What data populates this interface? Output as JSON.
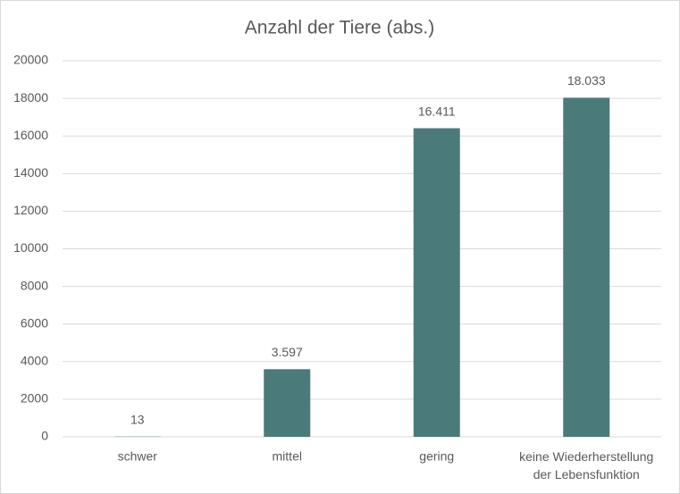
{
  "chart_data": {
    "type": "bar",
    "title": "Anzahl der Tiere (abs.)",
    "categories": [
      "schwer",
      "mittel",
      "gering",
      "keine Wiederherstellung der Lebensfunktion"
    ],
    "values": [
      13,
      3597,
      16411,
      18033
    ],
    "value_labels": [
      "13",
      "3.597",
      "16.411",
      "18.033"
    ],
    "color": "#4a7b7a",
    "ylim": [
      0,
      20000
    ],
    "yticks": [
      0,
      2000,
      4000,
      6000,
      8000,
      10000,
      12000,
      14000,
      16000,
      18000,
      20000
    ],
    "grid": true
  }
}
